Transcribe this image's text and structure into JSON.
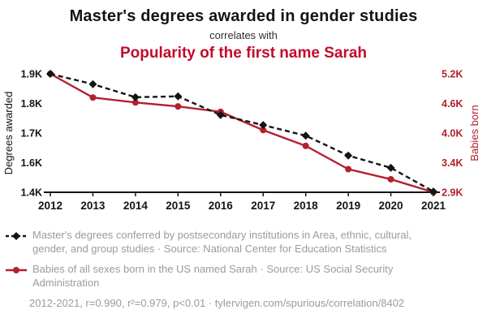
{
  "header": {
    "title": "Master's degrees awarded in gender studies",
    "subtitle": "correlates with",
    "title2": "Popularity of the first name Sarah"
  },
  "colors": {
    "title_red": "#c00c2a",
    "series_red": "#b3202e",
    "series_black": "#141414",
    "muted_text": "#9b9b9b"
  },
  "chart_data": {
    "type": "line",
    "x": [
      "2012",
      "2013",
      "2014",
      "2015",
      "2016",
      "2017",
      "2018",
      "2019",
      "2020",
      "2021"
    ],
    "series": [
      {
        "id": "babies",
        "name": "Babies of all sexes born in the US named Sarah",
        "axis": "right",
        "color": "#b3202e",
        "dashed": false,
        "marker": "circle",
        "values": [
          5200,
          4720,
          4620,
          4540,
          4430,
          4060,
          3740,
          3290,
          3120,
          2900
        ]
      },
      {
        "id": "degrees",
        "name": "Master's degrees conferred in Area, ethnic, cultural, gender, and group studies",
        "axis": "left",
        "color": "#141414",
        "dashed": true,
        "marker": "diamond",
        "values": [
          1900,
          1865,
          1821,
          1824,
          1761,
          1727,
          1691,
          1624,
          1565,
          1405
        ]
      }
    ],
    "axes": {
      "left": {
        "label": "Degrees awarded",
        "color": "#141414",
        "tick_values": [
          1900,
          1800,
          1700,
          1600,
          1400
        ],
        "tick_labels": [
          "1.9K",
          "1.8K",
          "1.7K",
          "1.6K",
          "1.4K"
        ]
      },
      "right": {
        "label": "Babies born",
        "color": "#b3202e",
        "tick_values": [
          5200,
          4600,
          4000,
          3400,
          2900
        ],
        "tick_labels": [
          "5.2K",
          "4.6K",
          "4.0K",
          "3.4K",
          "2.9K"
        ]
      }
    },
    "grid": false,
    "legend_position": "bottom"
  },
  "legend": {
    "items": [
      {
        "label": "Master's degrees conferred by postsecondary institutions in Area, ethnic, cultural, gender, and group studies · Source: National Center for Education Statistics",
        "color": "#141414",
        "dashed": true,
        "marker": "diamond"
      },
      {
        "label": "Babies of all sexes born in the US named Sarah · Source: US Social Security Administration",
        "color": "#b3202e",
        "dashed": false,
        "marker": "circle"
      }
    ]
  },
  "footer": {
    "stats": "2012-2021, r=0.990, r²=0.979, p<0.01 · ",
    "url": "tylervigen.com/spurious/correlation/8402"
  }
}
